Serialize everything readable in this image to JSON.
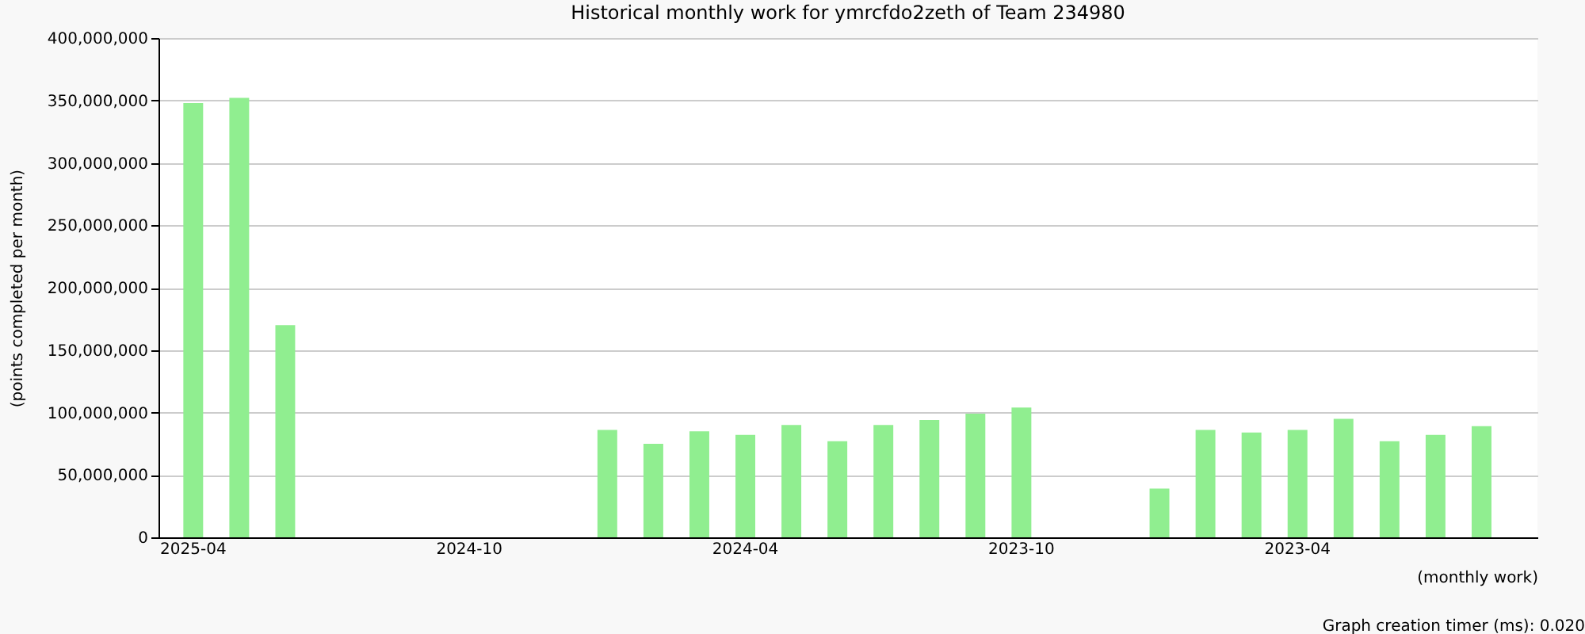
{
  "chart_data": {
    "type": "bar",
    "title": "Historical monthly work for ymrcfdo2zeth of Team 234980",
    "xlabel": "(monthly work)",
    "ylabel": "(points completed per month)",
    "annotations": [
      "Graph creation timer (ms): 0.020"
    ],
    "categories": [
      "2025-04",
      null,
      null,
      null,
      null,
      null,
      "2024-10",
      null,
      null,
      null,
      null,
      null,
      "2024-04",
      null,
      null,
      null,
      null,
      null,
      "2023-10",
      null,
      null,
      null,
      null,
      null,
      "2023-04",
      null,
      null,
      null,
      null,
      null
    ],
    "values": [
      348000000,
      352000000,
      170000000,
      null,
      null,
      null,
      null,
      null,
      null,
      86000000,
      75000000,
      85000000,
      82000000,
      90000000,
      77000000,
      90000000,
      94000000,
      99000000,
      104000000,
      null,
      null,
      39000000,
      86000000,
      84000000,
      86000000,
      95000000,
      77000000,
      82000000,
      89000000,
      null
    ],
    "color": "#90ee90",
    "ylim": [
      0,
      400000000
    ],
    "yticks": [
      0,
      {
        "value": 50000000,
        "label": "50,000,000"
      },
      {
        "value": 100000000,
        "label": "100,000,000"
      },
      {
        "value": 150000000,
        "label": "150,000,000"
      },
      {
        "value": 200000000,
        "label": "200,000,000"
      },
      {
        "value": 250000000,
        "label": "250,000,000"
      },
      {
        "value": 300000000,
        "label": "300,000,000"
      },
      {
        "value": 350000000,
        "label": "350,000,000"
      },
      {
        "value": 400000000,
        "label": "400,000,000"
      }
    ],
    "grid": "y"
  }
}
